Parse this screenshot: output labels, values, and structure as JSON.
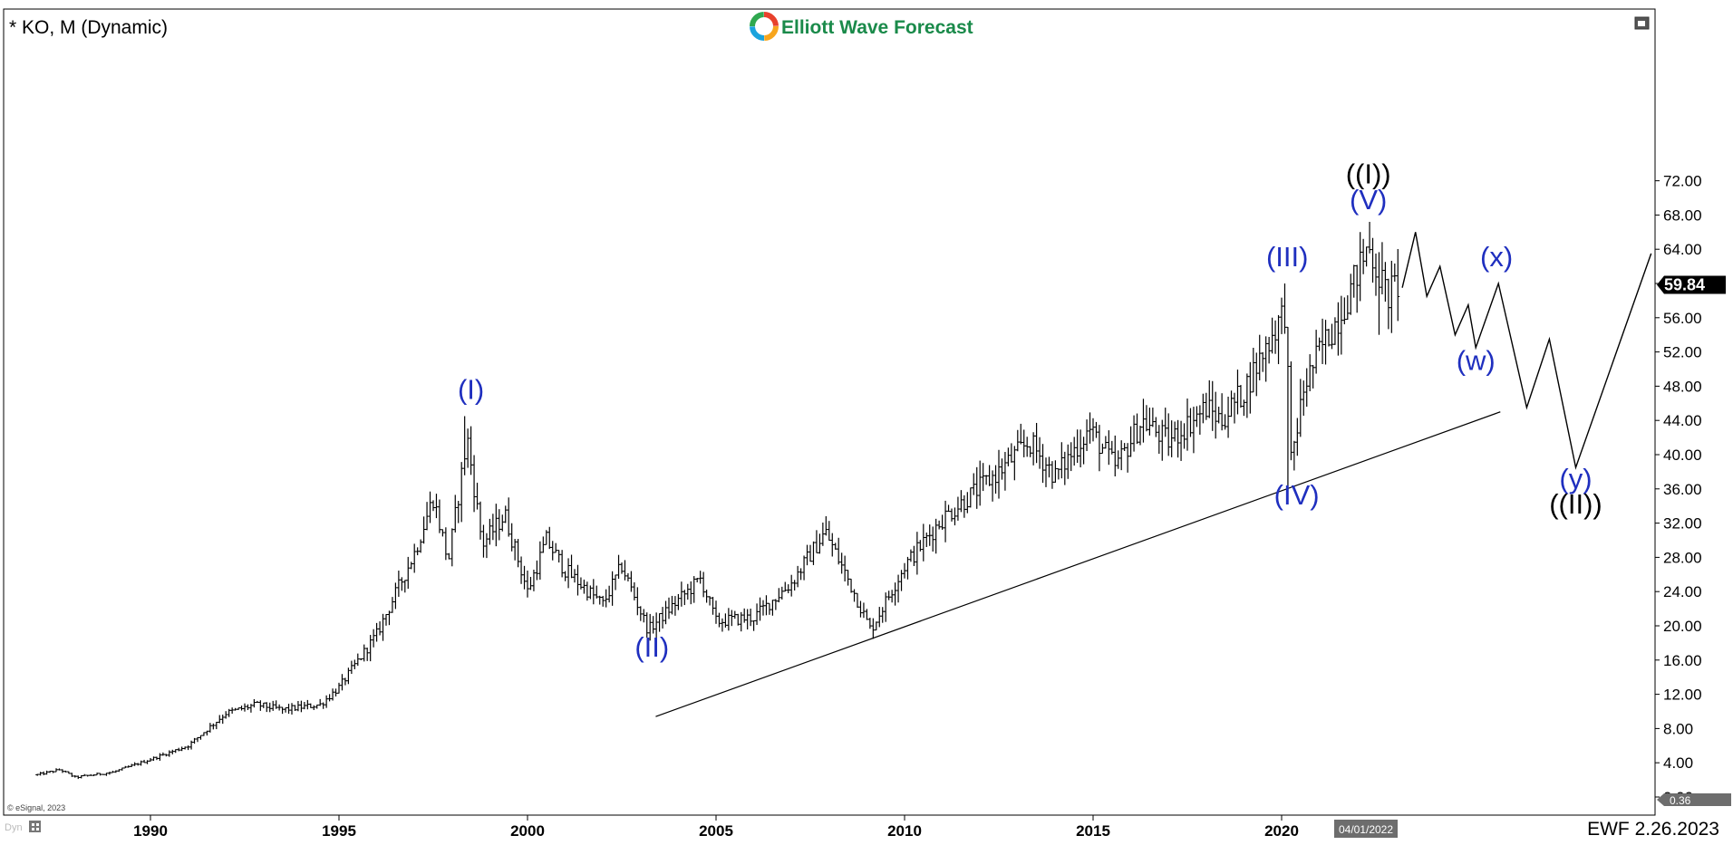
{
  "header": {
    "symbol_label": "* KO, M (Dynamic)",
    "logo_text": "Elliott Wave Forecast",
    "logo_colors": [
      "#e8412c",
      "#f7a51c",
      "#1aa3dd",
      "#2fa84f"
    ],
    "logo_text_color": "#1a8a4a"
  },
  "footer": {
    "copyright": "© eSignal, 2023",
    "dyn_label": "Dyn",
    "date_stamp": "EWF 2.26.2023",
    "cursor_date": "04/01/2022"
  },
  "price_marker": {
    "value": "59.84",
    "y_value": 59.84
  },
  "bottom_marker": {
    "value": "0.36"
  },
  "colors": {
    "wave_blue": "#1f2fbf",
    "wave_black": "#000000",
    "bars": "#000000"
  },
  "chart_data": {
    "type": "bar",
    "subtype": "ohlc",
    "x_axis": {
      "type": "date",
      "range": [
        1986.9,
        2027.6
      ],
      "ticks": [
        1990,
        1995,
        2000,
        2005,
        2010,
        2015,
        2020
      ],
      "tick_labels": [
        "1990",
        "1995",
        "2000",
        "2005",
        "2010",
        "2015",
        "2020"
      ]
    },
    "y_axis": {
      "range": [
        0,
        76
      ],
      "position": "right",
      "ticks": [
        0,
        4,
        8,
        12,
        16,
        20,
        24,
        28,
        32,
        36,
        40,
        44,
        48,
        52,
        56,
        60,
        64,
        68,
        72
      ],
      "tick_labels": [
        "0.00",
        "4.00",
        "8.00",
        "12.00",
        "16.00",
        "20.00",
        "24.00",
        "28.00",
        "32.00",
        "36.00",
        "40.00",
        "44.00",
        "48.00",
        "52.00",
        "56.00",
        "60.00",
        "64.00",
        "68.00",
        "72.00"
      ]
    },
    "price_anchors": [
      [
        1987.0,
        2.6
      ],
      [
        1987.6,
        3.2
      ],
      [
        1988.0,
        2.3
      ],
      [
        1989.0,
        2.9
      ],
      [
        1990.0,
        4.4
      ],
      [
        1991.0,
        6.0
      ],
      [
        1992.0,
        9.8
      ],
      [
        1992.8,
        10.8
      ],
      [
        1993.5,
        10.2
      ],
      [
        1994.5,
        10.8
      ],
      [
        1995.0,
        12.8
      ],
      [
        1996.0,
        19.0
      ],
      [
        1997.0,
        28.5
      ],
      [
        1997.5,
        35.0
      ],
      [
        1997.9,
        27.5
      ],
      [
        1998.4,
        42.0
      ],
      [
        1998.8,
        29.5
      ],
      [
        1999.4,
        33.0
      ],
      [
        2000.0,
        24.0
      ],
      [
        2000.5,
        30.0
      ],
      [
        2001.0,
        26.5
      ],
      [
        2002.0,
        22.5
      ],
      [
        2002.5,
        27.0
      ],
      [
        2003.2,
        19.5
      ],
      [
        2004.0,
        23.0
      ],
      [
        2004.6,
        25.5
      ],
      [
        2005.0,
        20.5
      ],
      [
        2006.0,
        21.0
      ],
      [
        2007.0,
        25.0
      ],
      [
        2007.9,
        31.0
      ],
      [
        2008.6,
        24.5
      ],
      [
        2009.1,
        19.5
      ],
      [
        2010.0,
        27.0
      ],
      [
        2011.0,
        32.5
      ],
      [
        2012.5,
        38.0
      ],
      [
        2013.3,
        41.5
      ],
      [
        2014.0,
        37.5
      ],
      [
        2014.9,
        43.0
      ],
      [
        2015.6,
        38.5
      ],
      [
        2016.3,
        44.0
      ],
      [
        2017.0,
        41.5
      ],
      [
        2018.0,
        45.5
      ],
      [
        2018.4,
        44.0
      ],
      [
        2019.0,
        47.5
      ],
      [
        2019.8,
        54.5
      ],
      [
        2020.1,
        57.0
      ],
      [
        2020.25,
        39.0
      ],
      [
        2020.6,
        48.0
      ],
      [
        2021.0,
        52.0
      ],
      [
        2021.5,
        56.0
      ],
      [
        2021.9,
        60.0
      ],
      [
        2022.3,
        64.5
      ],
      [
        2022.8,
        58.5
      ],
      [
        2023.1,
        60.0
      ]
    ],
    "extremes": [
      [
        1998.33,
        44.5,
        "high"
      ],
      [
        2003.15,
        18.8,
        "low"
      ],
      [
        2009.15,
        18.6,
        "low"
      ],
      [
        2020.1,
        60.0,
        "high"
      ],
      [
        2020.2,
        36.3,
        "low"
      ],
      [
        2022.3,
        67.2,
        "high"
      ],
      [
        2022.6,
        54.0,
        "low"
      ]
    ],
    "forecast_path": [
      [
        2023.2,
        59.5
      ],
      [
        2023.55,
        66.0
      ],
      [
        2023.85,
        58.5
      ],
      [
        2024.2,
        62.0
      ],
      [
        2024.6,
        54.0
      ],
      [
        2024.95,
        57.5
      ],
      [
        2025.15,
        52.5
      ],
      [
        2025.75,
        60.0
      ],
      [
        2026.5,
        45.5
      ],
      [
        2027.1,
        53.5
      ],
      [
        2027.8,
        38.5
      ],
      [
        2029.8,
        63.5
      ]
    ],
    "trendline": [
      [
        2003.4,
        9.4
      ],
      [
        2025.8,
        45.0
      ]
    ],
    "wave_labels": [
      {
        "text": "(I)",
        "x": 1998.5,
        "y": 46.5,
        "color": "blue"
      },
      {
        "text": "(II)",
        "x": 2003.3,
        "y": 16.4,
        "color": "blue"
      },
      {
        "text": "(III)",
        "x": 2020.15,
        "y": 62.0,
        "color": "blue"
      },
      {
        "text": "(IV)",
        "x": 2020.4,
        "y": 34.2,
        "color": "blue"
      },
      {
        "text": "(V)",
        "x": 2022.3,
        "y": 68.7,
        "color": "blue"
      },
      {
        "text": "((I))",
        "x": 2022.3,
        "y": 71.7,
        "color": "black"
      },
      {
        "text": "(w)",
        "x": 2025.15,
        "y": 49.9,
        "color": "blue"
      },
      {
        "text": "(x)",
        "x": 2025.7,
        "y": 62.0,
        "color": "blue"
      },
      {
        "text": "(y)",
        "x": 2027.8,
        "y": 36.1,
        "color": "blue"
      },
      {
        "text": "((II))",
        "x": 2027.8,
        "y": 33.1,
        "color": "black"
      }
    ]
  }
}
